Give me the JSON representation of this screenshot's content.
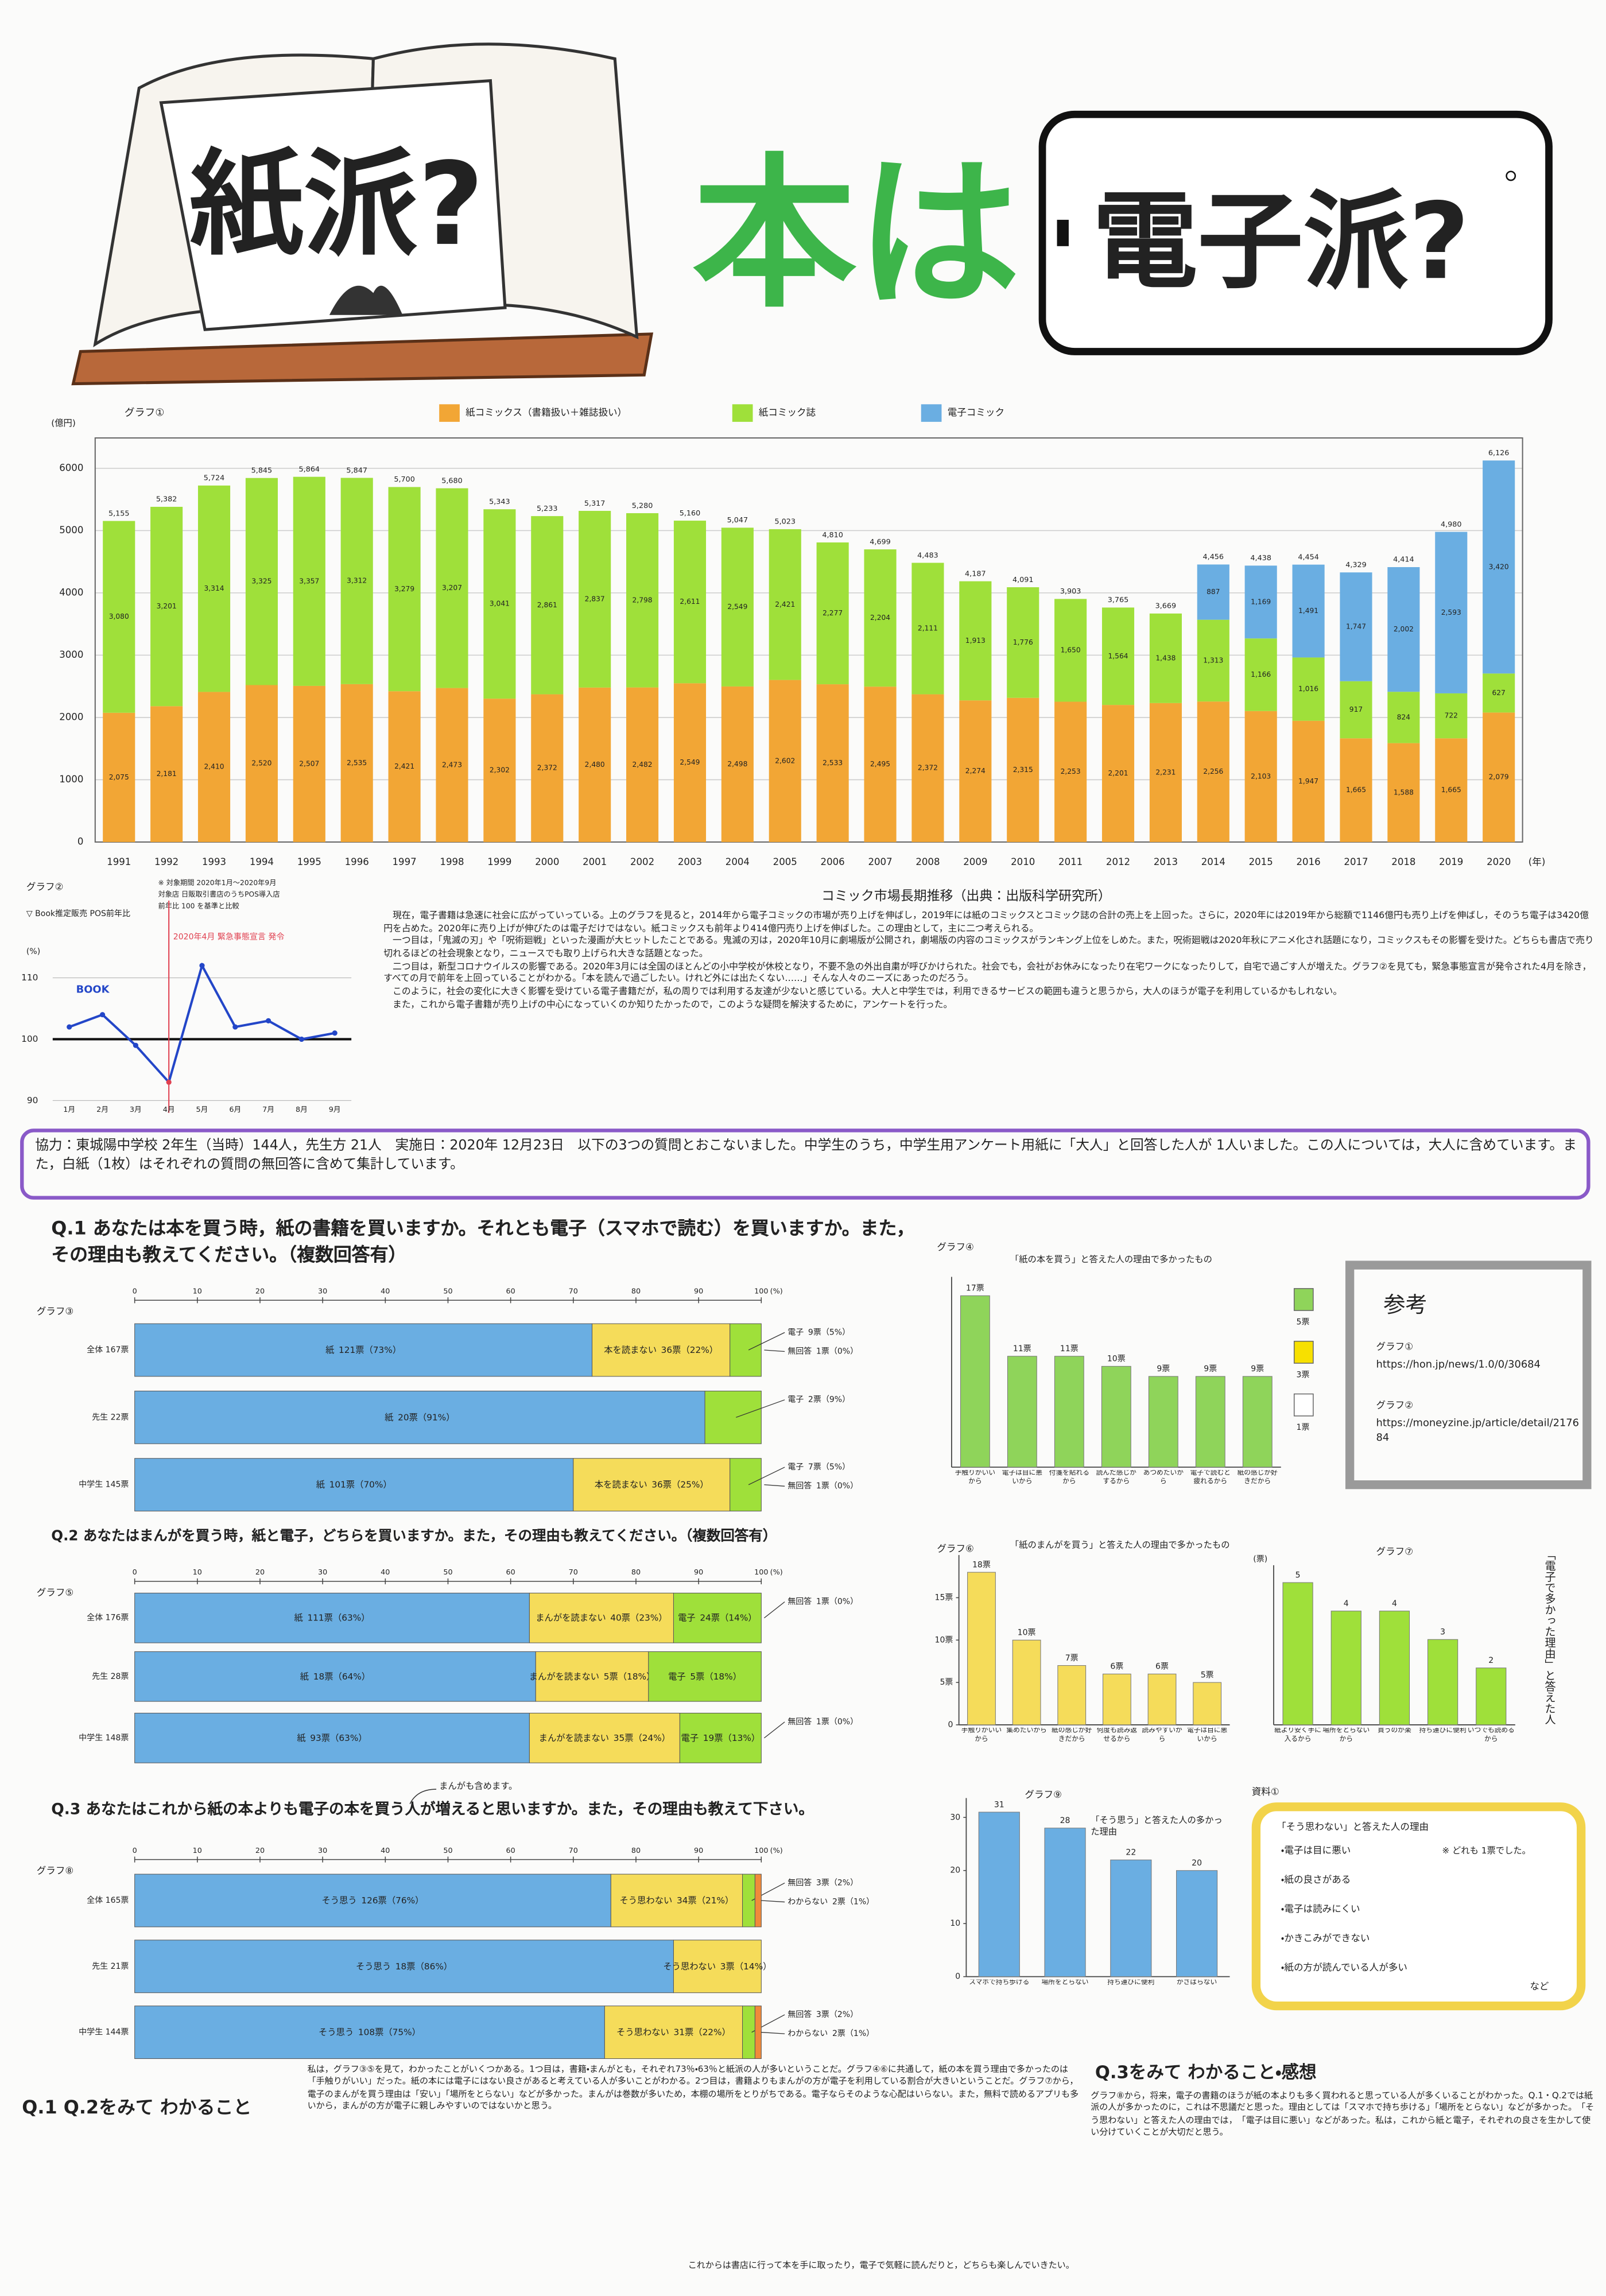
{
  "title": {
    "paper": "紙派?",
    "middle": "本は",
    "digital": "電子派?"
  },
  "chart_data": [
    {
      "type": "stacked_bar",
      "label": "グラフ①",
      "title": "コミック市場長期推移（出典：出版科学研究所）",
      "y_unit": "(億円)",
      "x_unit": "(年)",
      "categories": [
        "1991",
        "1992",
        "1993",
        "1994",
        "1995",
        "1996",
        "1997",
        "1998",
        "1999",
        "2000",
        "2001",
        "2002",
        "2003",
        "2004",
        "2005",
        "2006",
        "2007",
        "2008",
        "2009",
        "2010",
        "2011",
        "2012",
        "2013",
        "2014",
        "2015",
        "2016",
        "2017",
        "2018",
        "2019",
        "2020"
      ],
      "series": [
        {
          "name": "紙コミックス（書籍扱い＋雑誌扱い）",
          "color": "#f2a635",
          "values": [
            2075,
            2181,
            2410,
            2520,
            2507,
            2535,
            2421,
            2473,
            2302,
            2372,
            2480,
            2482,
            2549,
            2498,
            2602,
            2533,
            2495,
            2372,
            2274,
            2315,
            2253,
            2201,
            2231,
            2256,
            2103,
            1947,
            1665,
            1588,
            1665,
            2079
          ],
          "value_labels": [
            "2,075",
            "2,181",
            "2,410",
            "2,520",
            "2,507",
            "2,535",
            "2,421",
            "2,473",
            "2,302",
            "2,372",
            "2,480",
            "2,482",
            "2,549",
            "2,498",
            "2,602",
            "2,533",
            "2,495",
            "2,372",
            "2,274",
            "2,315",
            "2,253",
            "2,201",
            "2,231",
            "2,256",
            "2,103",
            "1,947",
            "1,665",
            "1,588",
            "1,665",
            "2,079"
          ]
        },
        {
          "name": "紙コミック誌",
          "color": "#9fe03a",
          "values": [
            3080,
            3201,
            3314,
            3325,
            3357,
            3312,
            3279,
            3207,
            3041,
            2861,
            2837,
            2798,
            2611,
            2549,
            2421,
            2277,
            2204,
            2111,
            1913,
            1776,
            1650,
            1564,
            1438,
            1313,
            1166,
            1016,
            917,
            824,
            722,
            627
          ],
          "value_labels": [
            "3,080",
            "3,201",
            "3,314",
            "3,325",
            "3,357",
            "3,312",
            "3,279",
            "3,207",
            "3,041",
            "2,861",
            "2,837",
            "2,798",
            "2,611",
            "2,549",
            "2,421",
            "2,277",
            "2,204",
            "2,111",
            "1,913",
            "1,776",
            "1,650",
            "1,564",
            "1,438",
            "1,313",
            "1,166",
            "1,016",
            "917",
            "824",
            "722",
            "627"
          ]
        },
        {
          "name": "電子コミック",
          "color": "#6aaee2",
          "values": [
            null,
            null,
            null,
            null,
            null,
            null,
            null,
            null,
            null,
            null,
            null,
            null,
            null,
            null,
            null,
            null,
            null,
            null,
            null,
            null,
            null,
            null,
            null,
            887,
            1169,
            1491,
            1747,
            2002,
            2593,
            3420
          ],
          "value_labels": [
            null,
            null,
            null,
            null,
            null,
            null,
            null,
            null,
            null,
            null,
            null,
            null,
            null,
            null,
            null,
            null,
            null,
            null,
            null,
            null,
            null,
            null,
            null,
            "887",
            "1,169",
            "1,491",
            "1,747",
            "2,002",
            "2,593",
            "3,420"
          ]
        }
      ],
      "total_labels": [
        "5,155",
        "5,382",
        "5,724",
        "5,845",
        "5,864",
        "5,847",
        "5,700",
        "5,680",
        "5,343",
        "5,233",
        "5,317",
        "5,280",
        "5,160",
        "5,047",
        "5,023",
        "4,810",
        "4,699",
        "4,483",
        "4,187",
        "4,091",
        "3,903",
        "3,765",
        "3,669",
        "4,456",
        "4,438",
        "4,454",
        "4,329",
        "4,414",
        "4,980",
        "6,126"
      ],
      "ylim": [
        0,
        6300
      ],
      "yticks": [
        0,
        1000,
        2000,
        3000,
        4000,
        5000,
        6000
      ],
      "grid": true
    },
    {
      "type": "line",
      "label": "グラフ②",
      "title": "▽ Book推定販売 POS前年比",
      "notes": [
        "※ 対象期間 2020年1月〜2020年9月",
        "対象店 日販取引書店のうちPOS導入店",
        "前年比 100 を基準と比較"
      ],
      "y_unit": "(%)",
      "categories": [
        "1月",
        "2月",
        "3月",
        "4月",
        "5月",
        "6月",
        "7月",
        "8月",
        "9月"
      ],
      "series": [
        {
          "name": "BOOK",
          "color": "#2346c8",
          "values": [
            102,
            104,
            99,
            93,
            112,
            102,
            103,
            100,
            101
          ]
        }
      ],
      "annotation": {
        "label": "2020年4月 緊急事態宣言 発令",
        "category": "4月",
        "color": "#e04050"
      },
      "reference_line": 100,
      "ylim": [
        88,
        114
      ],
      "yticks": [
        90,
        100,
        110
      ]
    },
    {
      "type": "stacked_hbar",
      "label": "グラフ③",
      "categories": [
        "全体 167票",
        "先生 22票",
        "中学生 145票"
      ],
      "series": [
        {
          "name": "紙",
          "color": "#6aaee2",
          "values": [
            73,
            91,
            70
          ],
          "value_labels": [
            "121票（73%）",
            "20票（91%）",
            "101票（70%）"
          ]
        },
        {
          "name": "本を読まない",
          "color": "#f5dc5a",
          "values": [
            22,
            null,
            25
          ],
          "value_labels": [
            "36票（22%）",
            null,
            "36票（25%）"
          ]
        },
        {
          "name": "電子",
          "color": "#9fe03a",
          "values": [
            5,
            9,
            5
          ],
          "value_labels": [
            "9票（5%）",
            "2票（9%）",
            "7票（5%）"
          ]
        },
        {
          "name": "無回答",
          "color": "#ffffff",
          "values": [
            0,
            null,
            0
          ],
          "value_labels": [
            "1票（0%）",
            null,
            "1票（0%）"
          ]
        }
      ],
      "x_unit": "(%)",
      "xlim": [
        0,
        100
      ],
      "xticks": [
        0,
        10,
        20,
        30,
        40,
        50,
        60,
        70,
        80,
        90,
        100
      ]
    },
    {
      "type": "bar",
      "label": "グラフ④",
      "title": "「紙の本を買う」と答えた人の理由で多かったもの",
      "categories": [
        "手触りがいいから",
        "電子は目に悪いから",
        "付箋を貼れるから",
        "読んだ感じがするから",
        "あつめたいから",
        "電子で読むと疲れるから",
        "紙の感じが好きだから"
      ],
      "values": [
        17,
        11,
        11,
        10,
        9,
        9,
        9
      ],
      "value_labels": [
        "17票",
        "11票",
        "11票",
        "10票",
        "9票",
        "9票",
        "9票"
      ],
      "color": "#8fd45a",
      "unit_labels": [
        {
          "label": "5票",
          "color": "#8fd45a"
        },
        {
          "label": "3票",
          "color": "#f7e000"
        },
        {
          "label": "1票",
          "color": "#ffffff"
        }
      ],
      "ylim": [
        0,
        18
      ]
    },
    {
      "type": "stacked_hbar",
      "label": "グラフ⑤",
      "categories": [
        "全体 176票",
        "先生 28票",
        "中学生 148票"
      ],
      "series": [
        {
          "name": "紙",
          "color": "#6aaee2",
          "values": [
            63,
            64,
            63
          ],
          "value_labels": [
            "111票（63%）",
            "18票（64%）",
            "93票（63%）"
          ]
        },
        {
          "name": "まんがを読まない",
          "color": "#f5dc5a",
          "values": [
            23,
            18,
            24
          ],
          "value_labels": [
            "40票（23%）",
            "5票（18%）",
            "35票（24%）"
          ]
        },
        {
          "name": "電子",
          "color": "#9fe03a",
          "values": [
            14,
            18,
            13
          ],
          "value_labels": [
            "24票（14%）",
            "5票（18%）",
            "19票（13%）"
          ]
        },
        {
          "name": "無回答",
          "color": "#ffffff",
          "values": [
            0,
            null,
            0
          ],
          "value_labels": [
            "1票（0%）",
            null,
            "1票（0%）"
          ]
        }
      ],
      "x_unit": "(%)",
      "xlim": [
        0,
        100
      ],
      "xticks": [
        0,
        10,
        20,
        30,
        40,
        50,
        60,
        70,
        80,
        90,
        100
      ]
    },
    {
      "type": "bar",
      "label": "グラフ⑥",
      "title": "「紙のまんがを買う」と答えた人の理由で多かったもの",
      "categories": [
        "手触りがいいから",
        "集めたいから",
        "紙の感じが好きだから",
        "何度も読み返せるから",
        "読みやすいから",
        "電子は目に悪いから"
      ],
      "values": [
        18,
        10,
        7,
        6,
        6,
        5
      ],
      "value_labels": [
        "18票",
        "10票",
        "7票",
        "6票",
        "6票",
        "5票"
      ],
      "color": "#f5dc5a",
      "ylim": [
        0,
        19
      ],
      "yticks": [
        0,
        {
          "value": 5,
          "label": "5票"
        },
        {
          "value": 10,
          "label": "10票"
        },
        {
          "value": 15,
          "label": "15票"
        }
      ]
    },
    {
      "type": "bar",
      "label": "グラフ⑦",
      "title": "「電子で多かった理由」と答えた人",
      "y_unit": "(票)",
      "categories": [
        "紙より安く手に入るから",
        "場所をとらないから",
        "買うのが楽",
        "持ち運びに便利",
        "いつでも読めるから"
      ],
      "values": [
        5,
        4,
        4,
        3,
        2
      ],
      "color": "#9fe03a",
      "ylim": [
        0,
        5.3
      ]
    },
    {
      "type": "stacked_hbar",
      "label": "グラフ⑧",
      "categories": [
        "全体 165票",
        "先生 21票",
        "中学生 144票"
      ],
      "series": [
        {
          "name": "そう思う",
          "color": "#6aaee2",
          "values": [
            76,
            86,
            75
          ],
          "value_labels": [
            "126票（76%）",
            "18票（86%）",
            "108票（75%）"
          ]
        },
        {
          "name": "そう思わない",
          "color": "#f5dc5a",
          "values": [
            21,
            14,
            22
          ],
          "value_labels": [
            "34票（21%）",
            "3票（14%）",
            "31票（22%）"
          ]
        },
        {
          "name": "無回答",
          "color": "#9fe03a",
          "values": [
            2,
            null,
            2
          ],
          "value_labels": [
            "3票（2%）",
            null,
            "3票（2%）"
          ]
        },
        {
          "name": "わからない",
          "color": "#f08a3a",
          "values": [
            1,
            null,
            1
          ],
          "value_labels": [
            "2票（1%）",
            null,
            "2票（1%）"
          ]
        }
      ],
      "x_unit": "(%)",
      "xlim": [
        0,
        100
      ],
      "xticks": [
        0,
        10,
        20,
        30,
        40,
        50,
        60,
        70,
        80,
        90,
        100
      ]
    },
    {
      "type": "bar",
      "label": "グラフ⑨",
      "title": "「そう思う」と答えた人の多かった理由",
      "categories": [
        "スマホで持ち歩ける",
        "場所をとらない",
        "持ち運びに便利",
        "かさばらない"
      ],
      "values": [
        31,
        28,
        22,
        20
      ],
      "color": "#6aaee2",
      "ylim": [
        0,
        32
      ],
      "yticks": [
        0,
        10,
        20,
        30
      ]
    }
  ],
  "intro": [
    "現在，電子書籍は急速に社会に広がっていっている。上のグラフを見ると，2014年から電子コミックの市場が売り上げを伸ばし，2019年には紙のコミックスとコミック誌の合計の売上を上回った。さらに，2020年には2019年から総額で1146億円も売り上げを伸ばし，そのうち電子は3420億円を占めた。2020年に売り上げが伸びたのは電子だけではない。紙コミックスも前年より414億円売り上げを伸ばした。この理由として，主に二つ考えられる。",
    "一つ目は，「鬼滅の刃」や「呪術廻戦」といった漫画が大ヒットしたことである。鬼滅の刃は，2020年10月に劇場版が公開され，劇場版の内容のコミックスがランキング上位をしめた。また，呪術廻戦は2020年秋にアニメ化され話題になり，コミックスもその影響を受けた。どちらも書店で売り切れるほどの社会現象となり，ニュースでも取り上げられ大きな話題となった。",
    "二つ目は，新型コロナウイルスの影響である。2020年3月には全国のほとんどの小中学校が休校となり，不要不急の外出自粛が呼びかけられた。社会でも，会社がお休みになったり在宅ワークになったりして，自宅で過ごす人が増えた。グラフ②を見ても，緊急事態宣言が発令された4月を除き，すべての月で前年を上回っていることがわかる。「本を読んで過ごしたい。けれど外には出たくない……」そんな人々のニーズにあったのだろう。",
    "このように，社会の変化に大きく影響を受けている電子書籍だが，私の周りでは利用する友達が少ないと感じている。大人と中学生では，利用できるサービスの範囲も違うと思うから，大人のほうが電子を利用しているかもしれない。",
    "また，これから電子書籍が売り上げの中心になっていくのか知りたかったので，このような疑問を解決するために，アンケートを行った。"
  ],
  "survey_note": "協力：東城陽中学校 2年生（当時）144人，先生方 21人　実施日：2020年 12月23日　以下の3つの質問とおこないました。中学生のうち，中学生用アンケート用紙に「大人」と回答した人が 1人いました。この人については，大人に含めています。また，白紙（1枚）はそれぞれの質問の無回答に含めて集計しています。",
  "questions": [
    "Q.1 あなたは本を買う時，紙の書籍を買いますか。それとも電子（スマホで読む）を買いますか。また，その理由も教えてください。（複数回答有）",
    "Q.2 あなたはまんがを買う時，紙と電子，どちらを買いますか。また，その理由も教えてください。（複数回答有）",
    "Q.3 あなたはこれから紙の本よりも電子の本を買う人が増えると思いますか。また，その理由も教えて下さい。"
  ],
  "q3_note": "まんがも含めます。",
  "reference": {
    "title": "参考",
    "items": [
      {
        "label": "グラフ①",
        "url": "https://hon.jp/news/1.0/0/30684"
      },
      {
        "label": "グラフ②",
        "url": "https://moneyzine.jp/article/detail/217684"
      }
    ]
  },
  "material": {
    "label": "資料①",
    "title": "「そう思わない」と答えた人の理由",
    "items": [
      "・電子は目に悪い",
      "・紙の良さがある",
      "・電子は読みにくい",
      "・かきこみができない",
      "・紙の方が読んでいる人が多い"
    ],
    "note": "※ どれも 1票でした。",
    "etc": "など"
  },
  "conclusions": [
    {
      "heading": "Q.1 Q.2をみて わかること",
      "text": "私は，グラフ③⑤を見て，わかったことがいくつかある。1つ目は，書籍・まんがとも，それぞれ73％・63％と紙派の人が多いということだ。グラフ④⑥に共通して，紙の本を買う理由で多かったのは「手触りがいい」だった。紙の本には電子にはない良さがあると考えている人が多いことがわかる。2つ目は，書籍よりもまんがの方が電子を利用している割合が大きいということだ。グラフ⑦から，電子のまんがを買う理由は「安い」「場所をとらない」などが多かった。まんがは巻数が多いため，本棚の場所をとりがちである。電子ならそのような心配はいらない。また，無料で読めるアプリも多いから，まんがの方が電子に親しみやすいのではないかと思う。"
    },
    {
      "heading": "Q.3をみて わかること・感想",
      "text": "グラフ⑧から，将来，電子の書籍のほうが紙の本よりも多く買われると思っている人が多くいることがわかった。Q.1・Q.2では紙派の人が多かったのに，これは不思議だと思った。理由としては「スマホで持ち歩ける」「場所をとらない」などが多かった。「そう思わない」と答えた人の理由では，「電子は目に悪い」などがあった。私は，これから紙と電子，それぞれの良さを生かして使い分けていくことが大切だと思う。"
    }
  ],
  "closing": "これからは書店に行って本を手に取ったり，電子で気軽に読んだりと，どちらも楽しんでいきたい。"
}
